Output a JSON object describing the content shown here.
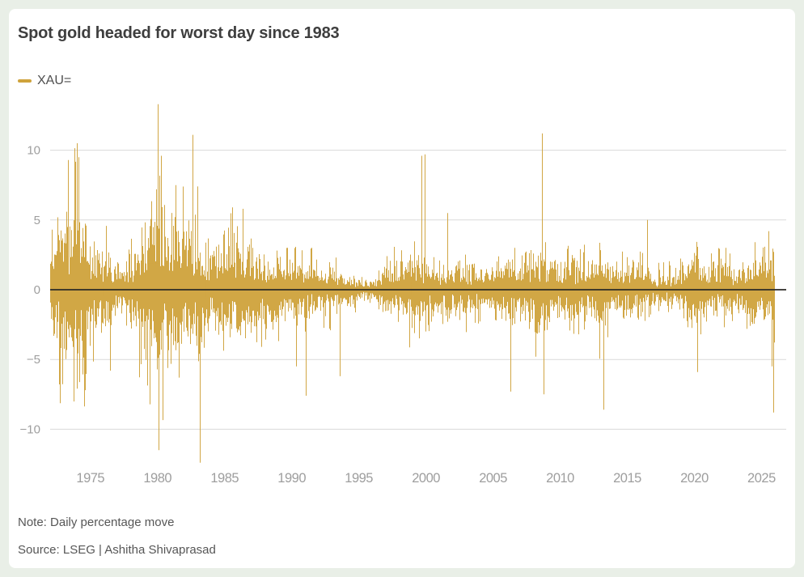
{
  "header": {
    "title": "Spot gold headed for worst day since 1983"
  },
  "legend": {
    "series_label": "XAU=",
    "swatch_color": "#CFA33C"
  },
  "footer": {
    "note": "Note: Daily percentage move",
    "source": "Source: LSEG | Ashitha Shivaprasad"
  },
  "chart_data": {
    "type": "bar",
    "title": "Spot gold headed for worst day since 1983",
    "series": [
      {
        "name": "XAU=",
        "unit": "daily percentage move"
      }
    ],
    "x_domain": [
      1972,
      2026
    ],
    "xticks": [
      1975,
      1980,
      1985,
      1990,
      1995,
      2000,
      2005,
      2010,
      2015,
      2020,
      2025
    ],
    "yticks": [
      10,
      5,
      0,
      -5,
      -10
    ],
    "ytick_labels": [
      "10",
      "5",
      "0",
      "−5",
      "−10"
    ],
    "ylim": [
      -13,
      14
    ],
    "grid": "horizontal-only",
    "legend_position": "top-left",
    "colors": {
      "bar": "#CFA33C",
      "zero_line": "#2B2A26",
      "grid": "#DADADA",
      "axis_text": "#9E9E9E"
    },
    "volatility_envelope_by_year": [
      [
        1972,
        5.0
      ],
      [
        1973,
        9.5
      ],
      [
        1974,
        10.5
      ],
      [
        1975,
        6.0
      ],
      [
        1976,
        5.5
      ],
      [
        1977,
        2.8
      ],
      [
        1978,
        4.0
      ],
      [
        1979,
        7.0
      ],
      [
        1980,
        11.0
      ],
      [
        1981,
        7.5
      ],
      [
        1982,
        7.0
      ],
      [
        1983,
        6.5
      ],
      [
        1984,
        4.5
      ],
      [
        1985,
        6.0
      ],
      [
        1986,
        5.8
      ],
      [
        1987,
        4.5
      ],
      [
        1988,
        4.0
      ],
      [
        1989,
        3.5
      ],
      [
        1990,
        4.5
      ],
      [
        1991,
        3.5
      ],
      [
        1992,
        2.2
      ],
      [
        1993,
        3.2
      ],
      [
        1994,
        2.0
      ],
      [
        1995,
        1.4
      ],
      [
        1996,
        1.2
      ],
      [
        1997,
        2.8
      ],
      [
        1998,
        3.0
      ],
      [
        1999,
        4.5
      ],
      [
        2000,
        3.5
      ],
      [
        2001,
        3.2
      ],
      [
        2002,
        2.8
      ],
      [
        2003,
        3.0
      ],
      [
        2004,
        2.8
      ],
      [
        2005,
        2.2
      ],
      [
        2006,
        4.5
      ],
      [
        2007,
        2.8
      ],
      [
        2008,
        6.0
      ],
      [
        2009,
        4.2
      ],
      [
        2010,
        3.2
      ],
      [
        2011,
        4.2
      ],
      [
        2012,
        2.8
      ],
      [
        2013,
        4.8
      ],
      [
        2014,
        2.6
      ],
      [
        2015,
        2.6
      ],
      [
        2016,
        3.6
      ],
      [
        2017,
        1.8
      ],
      [
        2018,
        1.9
      ],
      [
        2019,
        2.3
      ],
      [
        2020,
        4.6
      ],
      [
        2021,
        2.6
      ],
      [
        2022,
        3.0
      ],
      [
        2023,
        2.6
      ],
      [
        2024,
        3.2
      ],
      [
        2025,
        4.2
      ],
      [
        2026,
        4.2
      ]
    ],
    "notable_daily_moves": [
      {
        "year": 1973.35,
        "pct": 9.3
      },
      {
        "year": 1974.0,
        "pct": 10.5
      },
      {
        "year": 1974.15,
        "pct": 9.5
      },
      {
        "year": 1974.65,
        "pct": -7.2
      },
      {
        "year": 1976.5,
        "pct": -5.8
      },
      {
        "year": 1979.9,
        "pct": 7.2
      },
      {
        "year": 1980.06,
        "pct": 13.3
      },
      {
        "year": 1980.12,
        "pct": -11.5
      },
      {
        "year": 1980.3,
        "pct": 9.6
      },
      {
        "year": 1981.35,
        "pct": 7.5
      },
      {
        "year": 1981.6,
        "pct": -6.3
      },
      {
        "year": 1982.65,
        "pct": 11.1
      },
      {
        "year": 1983.0,
        "pct": 7.4
      },
      {
        "year": 1983.17,
        "pct": -12.4
      },
      {
        "year": 1985.6,
        "pct": 5.9
      },
      {
        "year": 1986.35,
        "pct": 5.8
      },
      {
        "year": 1990.35,
        "pct": -5.5
      },
      {
        "year": 1991.05,
        "pct": -7.6
      },
      {
        "year": 1993.6,
        "pct": -6.2
      },
      {
        "year": 1999.72,
        "pct": 9.6
      },
      {
        "year": 1999.95,
        "pct": 9.7
      },
      {
        "year": 2001.65,
        "pct": 5.5
      },
      {
        "year": 2006.35,
        "pct": -7.3
      },
      {
        "year": 2008.7,
        "pct": 11.2
      },
      {
        "year": 2008.8,
        "pct": -7.5
      },
      {
        "year": 2013.28,
        "pct": -8.6
      },
      {
        "year": 2016.5,
        "pct": 5.0
      },
      {
        "year": 2020.25,
        "pct": -5.9
      },
      {
        "year": 2025.55,
        "pct": 4.2
      },
      {
        "year": 2025.8,
        "pct": -5.5
      },
      {
        "year": 2025.93,
        "pct": -8.8
      }
    ],
    "seed": 1983
  }
}
